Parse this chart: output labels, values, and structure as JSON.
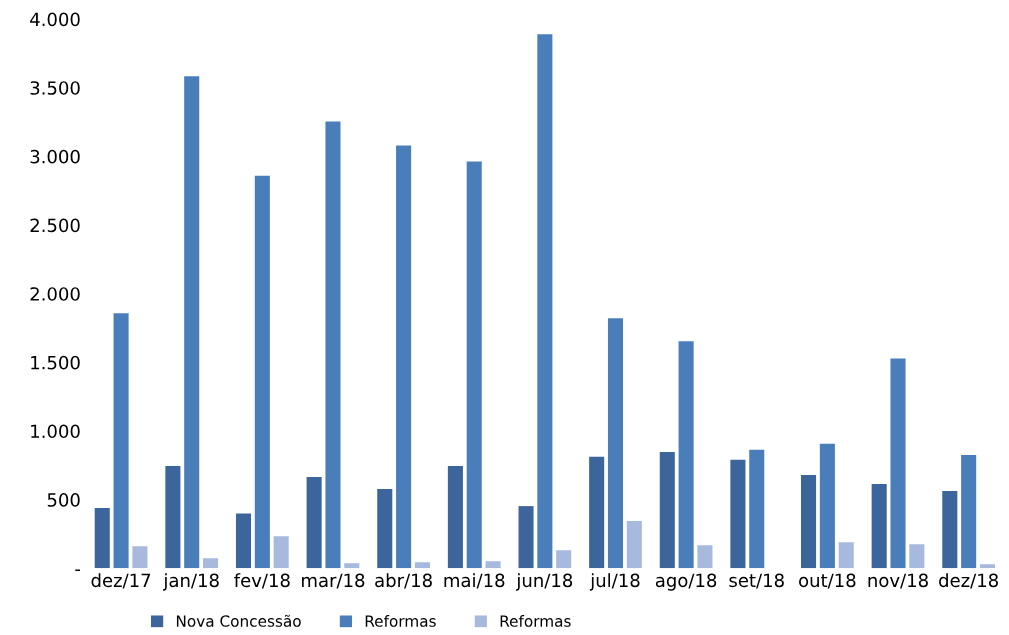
{
  "chart_data": {
    "type": "bar",
    "categories": [
      "dez/17",
      "jan/18",
      "fev/18",
      "mar/18",
      "abr/18",
      "mai/18",
      "jun/18",
      "jul/18",
      "ago/18",
      "set/18",
      "out/18",
      "nov/18",
      "dez/18"
    ],
    "series": [
      {
        "name": "Nova Concessão",
        "color": "#3b659b",
        "values": [
          440,
          745,
          400,
          665,
          578,
          746,
          453,
          812,
          848,
          790,
          680,
          614,
          563
        ]
      },
      {
        "name": "Reformas",
        "color": "#4a7ebb",
        "values": [
          1857,
          3583,
          2859,
          3254,
          3079,
          2962,
          3890,
          1821,
          1653,
          863,
          907,
          1528,
          826
        ]
      },
      {
        "name": "Reformas",
        "color": "#a7b9dc",
        "values": [
          160,
          73,
          234,
          37,
          44,
          51,
          132,
          344,
          168,
          0,
          190,
          175,
          29
        ]
      }
    ],
    "ylim": [
      0,
      4000
    ],
    "yticks": [
      {
        "value": 0,
        "label": "-"
      },
      500,
      {
        "value": 1000,
        "label": "1.000"
      },
      {
        "value": 1500,
        "label": "1.500"
      },
      {
        "value": 2000,
        "label": "2.000"
      },
      {
        "value": 2500,
        "label": "2.500"
      },
      {
        "value": 3000,
        "label": "3.000"
      },
      {
        "value": 3500,
        "label": "3.500"
      },
      {
        "value": 4000,
        "label": "4.000"
      }
    ],
    "grid": false,
    "legend": "bottom"
  }
}
